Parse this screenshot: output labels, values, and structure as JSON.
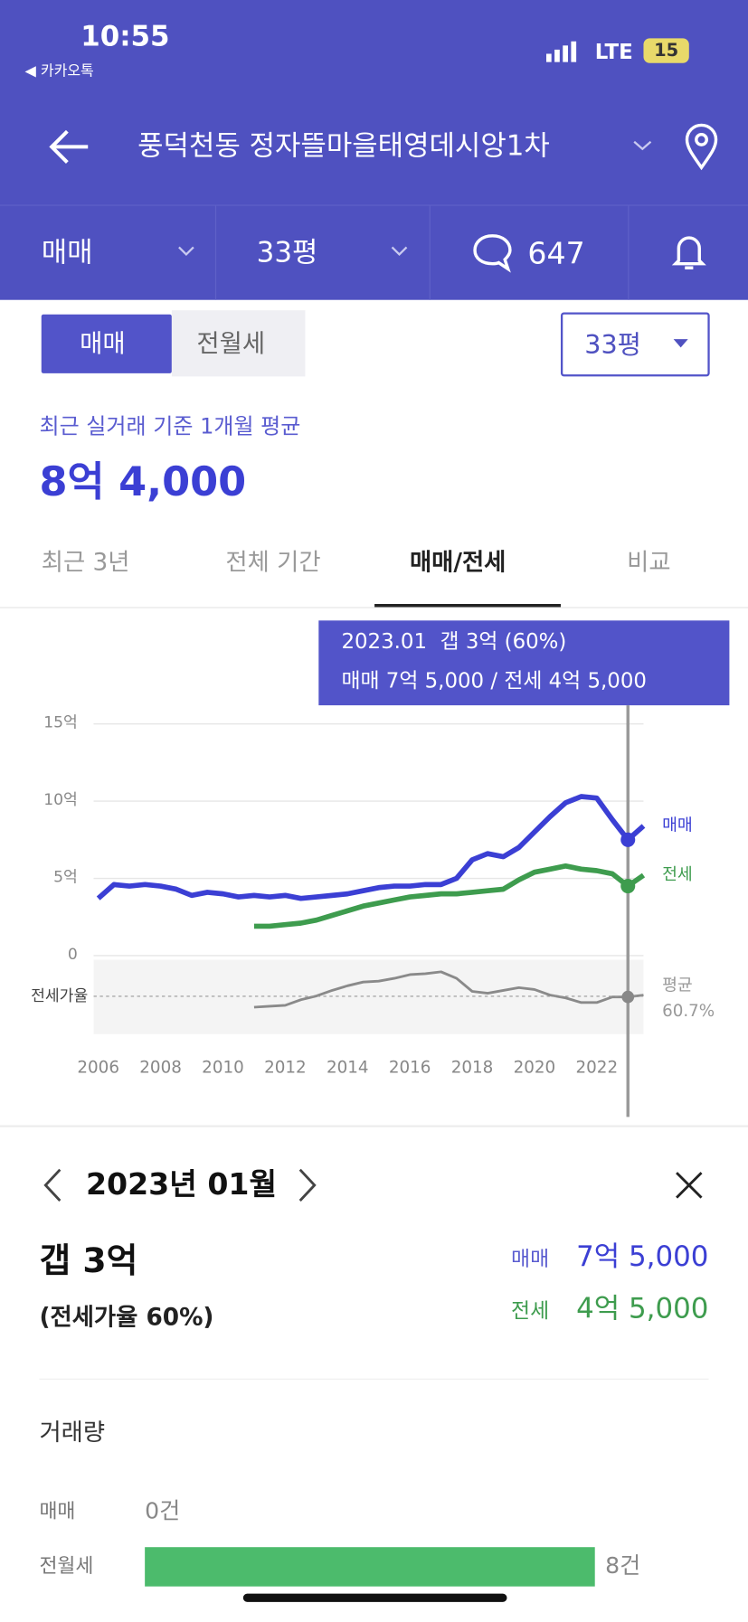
{
  "status_bar": {
    "time": "10:55",
    "back_app": "◀ 카카오톡",
    "network": "LTE",
    "battery": "15"
  },
  "header": {
    "title": "풍덕천동 정자뜰마을태영데시앙1차",
    "filters": [
      "매매",
      "33평"
    ],
    "comments": 647
  },
  "segment": {
    "options": [
      "매매",
      "전월세"
    ],
    "size": "33평"
  },
  "summary": {
    "caption": "최근 실거래 기준 1개월 평균",
    "price": "8억 4,000"
  },
  "tabs": [
    "최근 3년",
    "전체 기간",
    "매매/전세",
    "비교"
  ],
  "chart_data": [
    {
      "type": "line",
      "tooltip": [
        "2023.01  갭 3억 (60%)",
        "매매 7억 5,000 / 전세 4억 5,000"
      ],
      "cursor_x": 2023.0,
      "x": [
        2006,
        2006.5,
        2007,
        2007.5,
        2008,
        2008.5,
        2009,
        2009.5,
        2010,
        2010.5,
        2011,
        2011.5,
        2012,
        2012.5,
        2013,
        2013.5,
        2014,
        2014.5,
        2015,
        2015.5,
        2016,
        2016.5,
        2017,
        2017.5,
        2018,
        2018.5,
        2019,
        2019.5,
        2020,
        2020.5,
        2021,
        2021.5,
        2022,
        2022.5,
        2023,
        2023.5
      ],
      "xlim": [
        2005.85,
        2023.5
      ],
      "xticks": [
        2006,
        2008,
        2010,
        2012,
        2014,
        2016,
        2018,
        2020,
        2022
      ],
      "ylim": [
        0,
        15
      ],
      "yticks": [
        0,
        {
          "value": 5,
          "label": "5억"
        },
        {
          "value": 10,
          "label": "10억"
        },
        {
          "value": 15,
          "label": "15억"
        }
      ],
      "grid": true,
      "series": [
        {
          "name": "매매",
          "color": "#3b3fd4",
          "values": [
            3.7,
            4.6,
            4.5,
            4.6,
            4.5,
            4.3,
            3.9,
            4.1,
            4.0,
            3.8,
            3.9,
            3.8,
            3.9,
            3.7,
            3.8,
            3.9,
            4.0,
            4.2,
            4.4,
            4.5,
            4.5,
            4.6,
            4.6,
            5.0,
            6.2,
            6.6,
            6.4,
            7.0,
            8.0,
            9.0,
            9.9,
            10.3,
            10.2,
            8.8,
            7.5,
            8.4
          ]
        },
        {
          "name": "전세",
          "color": "#3e9c4e",
          "values": [
            null,
            null,
            null,
            null,
            null,
            null,
            null,
            null,
            null,
            null,
            1.9,
            1.9,
            2.0,
            2.1,
            2.3,
            2.6,
            2.9,
            3.2,
            3.4,
            3.6,
            3.8,
            3.9,
            4.0,
            4.0,
            4.1,
            4.2,
            4.3,
            4.9,
            5.4,
            5.6,
            5.8,
            5.6,
            5.5,
            5.3,
            4.5,
            5.2
          ]
        }
      ]
    },
    {
      "type": "line",
      "y_label": "전세가율",
      "average_label": "평균",
      "average": {
        "value": 60.7,
        "label": "60.7%"
      },
      "cursor_x": 2023.0,
      "x": [
        2006,
        2006.5,
        2007,
        2007.5,
        2008,
        2008.5,
        2009,
        2009.5,
        2010,
        2010.5,
        2011,
        2011.5,
        2012,
        2012.5,
        2013,
        2013.5,
        2014,
        2014.5,
        2015,
        2015.5,
        2016,
        2016.5,
        2017,
        2017.5,
        2018,
        2018.5,
        2019,
        2019.5,
        2020,
        2020.5,
        2021,
        2021.5,
        2022,
        2022.5,
        2023,
        2023.5
      ],
      "xlim": [
        2005.85,
        2023.5
      ],
      "ylim": [
        20,
        100
      ],
      "series": [
        {
          "name": "전세가율",
          "color": "#8a8a8a",
          "values": [
            null,
            null,
            null,
            null,
            null,
            null,
            null,
            null,
            null,
            null,
            49,
            50,
            51,
            57,
            61,
            67,
            72,
            76,
            77,
            80,
            84,
            85,
            87,
            80,
            66,
            64,
            67,
            70,
            68,
            62,
            59,
            54,
            54,
            60,
            60,
            62
          ]
        }
      ]
    },
    {
      "type": "bar",
      "orientation": "horizontal",
      "title": "거래량",
      "categories": [
        "매매",
        "전월세"
      ],
      "values": [
        0,
        8
      ],
      "value_labels": [
        "0건",
        "8건"
      ],
      "xlim": [
        0,
        8
      ],
      "color": "#4cbb6c"
    }
  ],
  "detail": {
    "month": "2023년 01월",
    "gap": "갭 3억",
    "ratio": "(전세가율 60%)",
    "sale_label": "매매",
    "sale": "7억 5,000",
    "jeonse_label": "전세",
    "jeonse": "4억 5,000"
  }
}
